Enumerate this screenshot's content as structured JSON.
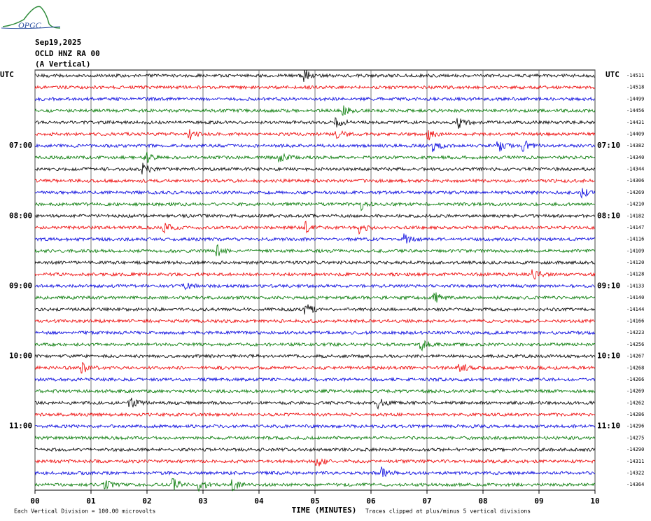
{
  "header": {
    "logo": "OPGC",
    "date": "Sep19,2025",
    "station": "OCLD HNZ RA 00",
    "component": "(A Vertical)"
  },
  "left_axis": {
    "unit": "UTC",
    "hours": [
      "07:00",
      "08:00",
      "09:00",
      "10:00",
      "11:00"
    ]
  },
  "right_axis": {
    "unit": "UTC",
    "hours": [
      "07:10",
      "08:10",
      "09:10",
      "10:10",
      "11:10"
    ],
    "offsets": [
      -14511,
      -14518,
      -14499,
      -14456,
      -14431,
      -14409,
      -14382,
      -14340,
      -14344,
      -14306,
      -14269,
      -14210,
      -14182,
      -14147,
      -14116,
      -14109,
      -14120,
      -14128,
      -14133,
      -14140,
      -14144,
      -14166,
      -14223,
      -14256,
      -14267,
      -14268,
      -14266,
      -14269,
      -14262,
      -14286,
      -14296,
      -14275,
      -14290,
      -14311,
      -14322,
      -14364
    ]
  },
  "x_axis": {
    "ticks": [
      "00",
      "01",
      "02",
      "03",
      "04",
      "05",
      "06",
      "07",
      "08",
      "09",
      "10"
    ],
    "label": "TIME (MINUTES)"
  },
  "footer": {
    "scale": "Each Vertical Division =  100.00 microvolts",
    "clip": "Traces clipped at plus/minus 5 vertical divisions"
  }
}
